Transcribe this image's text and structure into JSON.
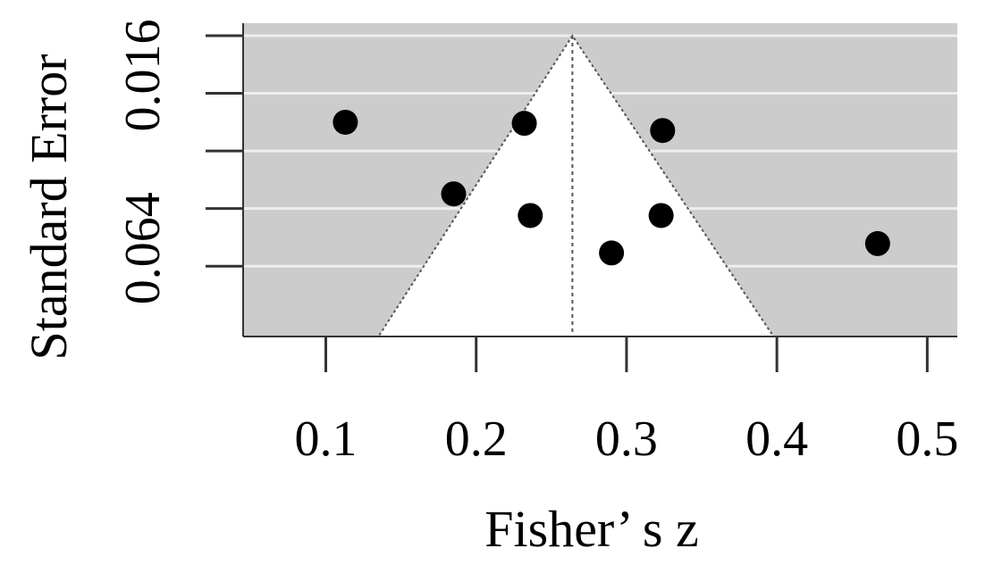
{
  "chart_data": {
    "type": "scatter",
    "plot": "funnel",
    "title": "",
    "xlabel": "Fisher’ s z",
    "ylabel": "Standard Error",
    "xlim": [
      0.045,
      0.52
    ],
    "ylim": [
      0.087,
      0.0
    ],
    "y_reversed": true,
    "x_ticks": [
      0.1,
      0.2,
      0.3,
      0.4,
      0.5
    ],
    "x_tick_labels": [
      "0.1",
      "0.2",
      "0.3",
      "0.4",
      "0.5"
    ],
    "y_ticks": [
      0.0,
      0.016,
      0.032,
      0.048,
      0.064
    ],
    "y_tick_labels": [
      "0.016",
      "0.064"
    ],
    "y_tick_label_values": [
      0.016,
      0.064
    ],
    "funnel_center": 0.264,
    "grid": true,
    "background_color": "#cccccc",
    "funnel_fill": "#ffffff",
    "grid_color": "#eeeeee",
    "point_color": "#000000",
    "points": [
      {
        "x": 0.113,
        "y": 0.0275
      },
      {
        "x": 0.232,
        "y": 0.0278
      },
      {
        "x": 0.324,
        "y": 0.0298
      },
      {
        "x": 0.185,
        "y": 0.0474
      },
      {
        "x": 0.236,
        "y": 0.0534
      },
      {
        "x": 0.323,
        "y": 0.0534
      },
      {
        "x": 0.29,
        "y": 0.0638
      },
      {
        "x": 0.467,
        "y": 0.0612
      }
    ]
  }
}
